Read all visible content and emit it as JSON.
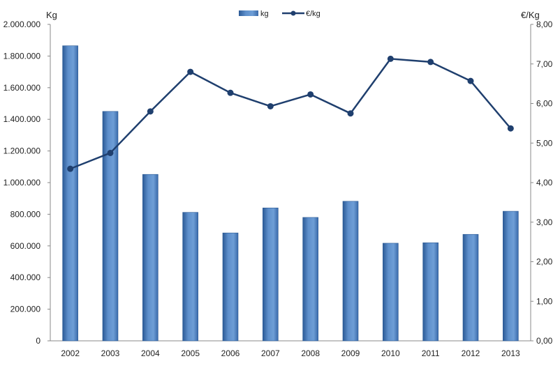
{
  "chart_data": {
    "type": "bar",
    "categories": [
      "2002",
      "2003",
      "2004",
      "2005",
      "2006",
      "2007",
      "2008",
      "2009",
      "2010",
      "2011",
      "2012",
      "2013"
    ],
    "series": [
      {
        "name": "kg",
        "type": "bar",
        "axis": "left",
        "values": [
          1865000,
          1450000,
          1052000,
          812000,
          682000,
          840000,
          780000,
          882000,
          617000,
          620000,
          673000,
          819000
        ]
      },
      {
        "name": "€/kg",
        "type": "line",
        "axis": "right",
        "values": [
          4.35,
          4.75,
          5.8,
          6.8,
          6.27,
          5.93,
          6.23,
          5.75,
          7.13,
          7.05,
          6.57,
          5.37
        ]
      }
    ],
    "y_left": {
      "label": "Kg",
      "range": [
        0,
        2000000
      ],
      "ticks": [
        "0",
        "200.000",
        "400.000",
        "600.000",
        "800.000",
        "1.000.000",
        "1.200.000",
        "1.400.000",
        "1.600.000",
        "1.800.000",
        "2.000.000"
      ]
    },
    "y_right": {
      "label": "€/Kg",
      "range": [
        0,
        8
      ],
      "ticks": [
        "0,00",
        "1,00",
        "2,00",
        "3,00",
        "4,00",
        "5,00",
        "6,00",
        "7,00",
        "8,00"
      ]
    },
    "legend": {
      "position": "top-center",
      "items": [
        "kg",
        "€/kg"
      ]
    },
    "grid": false,
    "colors": {
      "bar": "#4F81BD",
      "bar_dark": "#2C5A94",
      "line": "#1F3F6E"
    }
  }
}
